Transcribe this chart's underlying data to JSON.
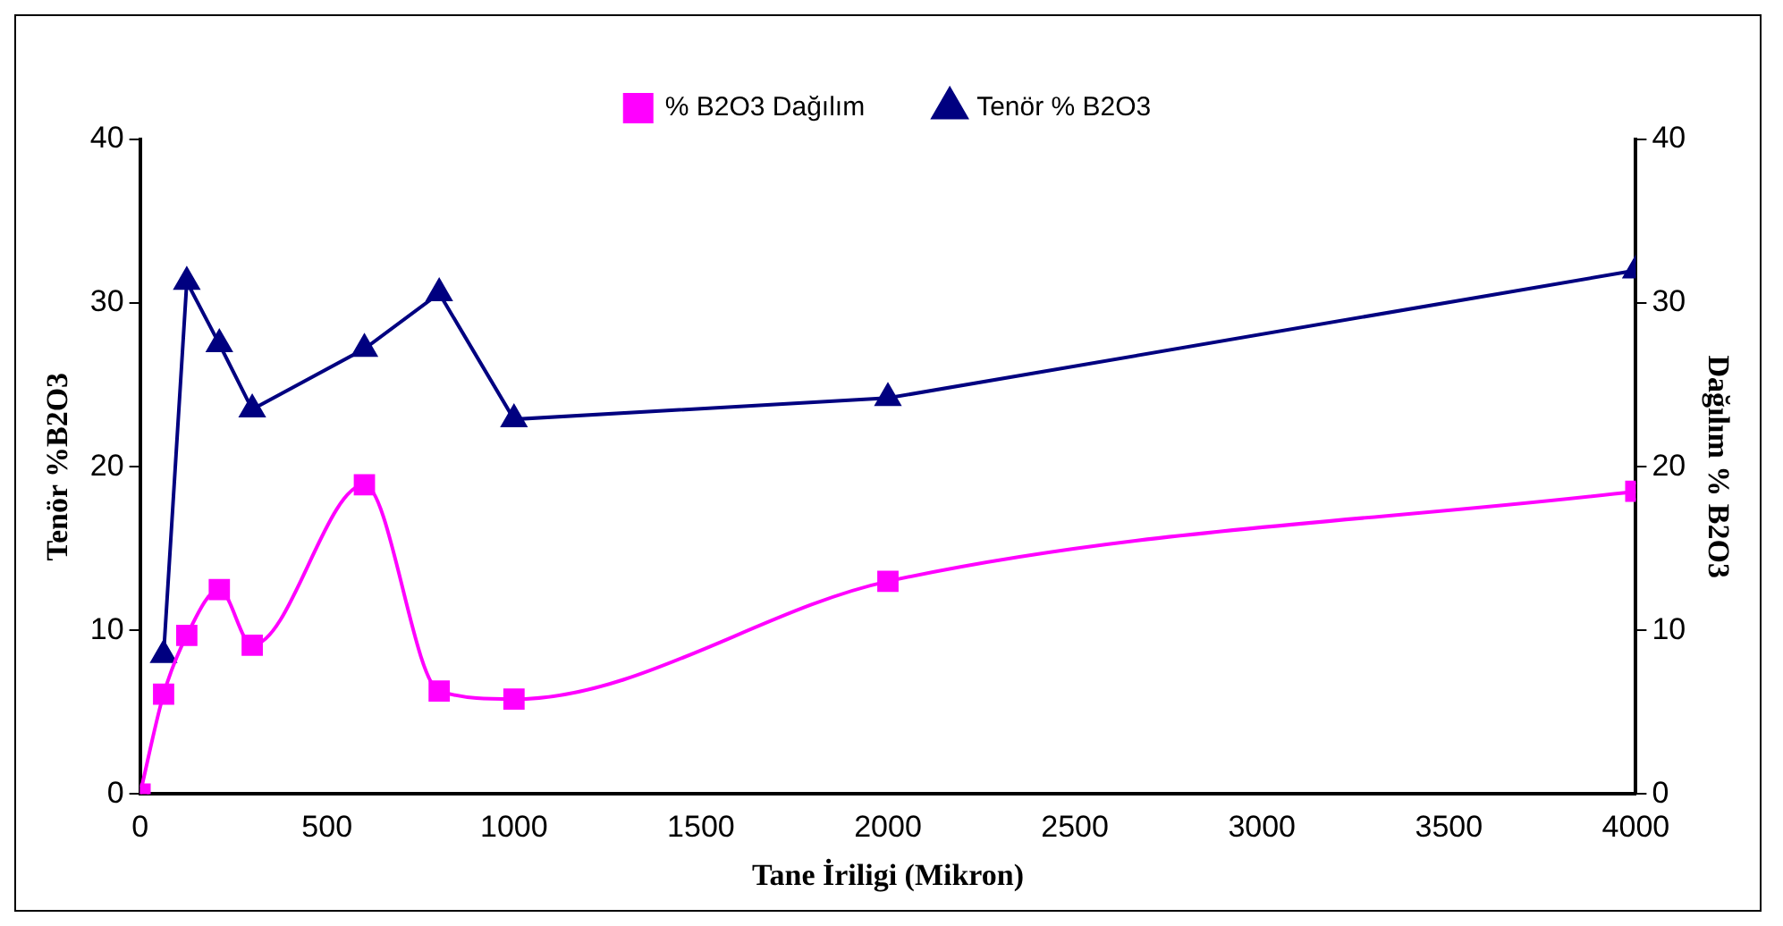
{
  "chart_data": {
    "type": "line",
    "xlabel": "Tane İriligi (Mikron)",
    "ylabel": "Tenör %B2O3",
    "y2label": "Dağılım % B2O3",
    "xlim": [
      0,
      4000
    ],
    "xticks": [
      0,
      500,
      1000,
      1500,
      2000,
      2500,
      3000,
      3500,
      4000
    ],
    "ylim": [
      0,
      40
    ],
    "yticks": [
      0,
      10,
      20,
      30,
      40
    ],
    "y2lim": [
      0,
      40
    ],
    "y2ticks": [
      0,
      10,
      20,
      30,
      40
    ],
    "grid": false,
    "legend": "top",
    "series": [
      {
        "name": "% B2O3 Dağılım",
        "color": "#ff00ff",
        "marker": "square",
        "axis": "y2",
        "x": [
          0,
          63,
          125,
          212,
          300,
          600,
          800,
          1000,
          2000,
          4000
        ],
        "values": [
          0,
          6.1,
          9.7,
          12.5,
          9.1,
          18.9,
          6.3,
          5.8,
          13.0,
          18.5
        ]
      },
      {
        "name": "Tenör % B2O3",
        "color": "#000080",
        "marker": "triangle",
        "x": [
          63,
          125,
          212,
          300,
          600,
          800,
          1000,
          2000,
          4000
        ],
        "values": [
          8.5,
          31.3,
          27.5,
          23.5,
          27.2,
          30.6,
          22.9,
          24.2,
          32.0
        ]
      }
    ]
  }
}
